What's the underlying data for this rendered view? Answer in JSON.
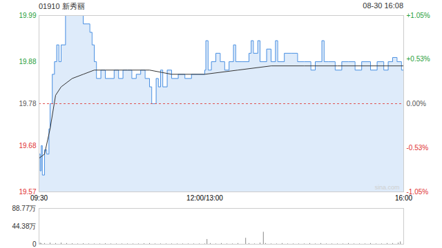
{
  "chart_data": [
    {
      "type": "line",
      "title": "01910 新秀丽",
      "subtitle": "08-30 16:08",
      "annotations": [
        "sina.com"
      ],
      "baseline": 19.78,
      "xlim": [
        0,
        330
      ],
      "xticks": [
        {
          "value": 0,
          "label": "09:30"
        },
        {
          "value": 150,
          "label": "12:00/13:00"
        },
        {
          "value": 330,
          "label": "16:00"
        }
      ],
      "ylim": [
        19.57,
        19.99
      ],
      "yticks": [
        19.57,
        19.68,
        19.78,
        19.88,
        19.99
      ],
      "y2lim": [
        -1.05,
        1.05
      ],
      "y2ticks": [
        {
          "value": -1.05,
          "label": "-1.05%"
        },
        {
          "value": -0.53,
          "label": "-0.53%"
        },
        {
          "value": 0,
          "label": "0.00%"
        },
        {
          "value": 0.53,
          "label": "+0.53%"
        },
        {
          "value": 1.05,
          "label": "+1.05%"
        }
      ],
      "series": [
        {
          "type": "area",
          "color": "#4a90e2",
          "x": [
            0,
            1,
            2,
            3,
            5,
            7,
            9,
            10,
            12,
            14,
            16,
            18,
            20,
            24,
            30,
            38,
            40,
            44,
            46,
            48,
            50,
            52,
            56,
            60,
            64,
            68,
            72,
            76,
            80,
            84,
            88,
            92,
            96,
            100,
            102,
            104,
            106,
            108,
            110,
            112,
            116,
            120,
            126,
            132,
            138,
            144,
            150,
            151,
            153,
            156,
            160,
            164,
            168,
            172,
            176,
            178,
            184,
            190,
            192,
            194,
            198,
            200,
            206,
            210,
            214,
            216,
            222,
            228,
            234,
            240,
            246,
            250,
            256,
            258,
            262,
            268,
            274,
            280,
            286,
            292,
            300,
            306,
            312,
            316,
            320,
            324,
            328,
            330
          ],
          "values": [
            19.66,
            19.62,
            19.68,
            19.61,
            19.67,
            19.66,
            19.72,
            19.78,
            19.85,
            19.88,
            19.92,
            19.88,
            19.92,
            19.99,
            19.99,
            19.99,
            19.97,
            19.97,
            19.95,
            19.92,
            19.88,
            19.84,
            19.86,
            19.84,
            19.84,
            19.86,
            19.84,
            19.86,
            19.86,
            19.84,
            19.85,
            19.86,
            19.84,
            19.82,
            19.78,
            19.78,
            19.84,
            19.82,
            19.86,
            19.82,
            19.86,
            19.84,
            19.85,
            19.84,
            19.85,
            19.85,
            19.86,
            19.93,
            19.86,
            19.88,
            19.9,
            19.88,
            19.86,
            19.88,
            19.92,
            19.88,
            19.88,
            19.9,
            19.93,
            19.9,
            19.93,
            19.88,
            19.91,
            19.88,
            19.93,
            19.88,
            19.9,
            19.9,
            19.88,
            19.88,
            19.86,
            19.88,
            19.93,
            19.88,
            19.88,
            19.86,
            19.88,
            19.88,
            19.86,
            19.88,
            19.86,
            19.88,
            19.86,
            19.88,
            19.89,
            19.88,
            19.86,
            19.85
          ]
        },
        {
          "type": "line",
          "color": "#333333",
          "x": [
            0,
            5,
            10,
            15,
            20,
            30,
            40,
            50,
            60,
            80,
            100,
            120,
            150,
            180,
            210,
            240,
            270,
            300,
            330
          ],
          "values": [
            19.65,
            19.66,
            19.72,
            19.8,
            19.82,
            19.84,
            19.85,
            19.86,
            19.86,
            19.86,
            19.86,
            19.85,
            19.85,
            19.86,
            19.87,
            19.87,
            19.87,
            19.87,
            19.87
          ]
        }
      ]
    },
    {
      "type": "bar",
      "color": "#888888",
      "xlim": [
        0,
        330
      ],
      "ylim": [
        0,
        88.77
      ],
      "yticks": [
        0,
        {
          "value": 44.38,
          "label": "44.38万"
        },
        {
          "value": 88.77,
          "label": "88.77万"
        }
      ],
      "x": [
        0,
        1,
        2,
        5,
        10,
        15,
        20,
        25,
        30,
        35,
        40,
        45,
        50,
        55,
        60,
        65,
        70,
        75,
        80,
        85,
        90,
        95,
        100,
        105,
        110,
        115,
        120,
        125,
        130,
        135,
        140,
        145,
        150,
        152,
        155,
        160,
        165,
        170,
        175,
        180,
        187,
        190,
        195,
        200,
        203,
        205,
        210,
        215,
        220,
        225,
        230,
        235,
        240,
        245,
        250,
        255,
        260,
        265,
        270,
        275,
        280,
        285,
        290,
        295,
        300,
        305,
        310,
        315,
        320,
        325,
        327,
        330
      ],
      "values": [
        4,
        3,
        2,
        2,
        3,
        2,
        3,
        2,
        1.5,
        1,
        1.5,
        1,
        1,
        1,
        1.5,
        1,
        1,
        1,
        1,
        1,
        1,
        1.5,
        2,
        1,
        1,
        1,
        1,
        1,
        1,
        1,
        1,
        1,
        1,
        12,
        2,
        1,
        2,
        1,
        1,
        2,
        15,
        2,
        1,
        3,
        30,
        2,
        1,
        1,
        2,
        1,
        1,
        1,
        1,
        2,
        1,
        2,
        1,
        1,
        1,
        1,
        2,
        1,
        1,
        1,
        2,
        1,
        1,
        2,
        2,
        3,
        6,
        3
      ]
    }
  ]
}
